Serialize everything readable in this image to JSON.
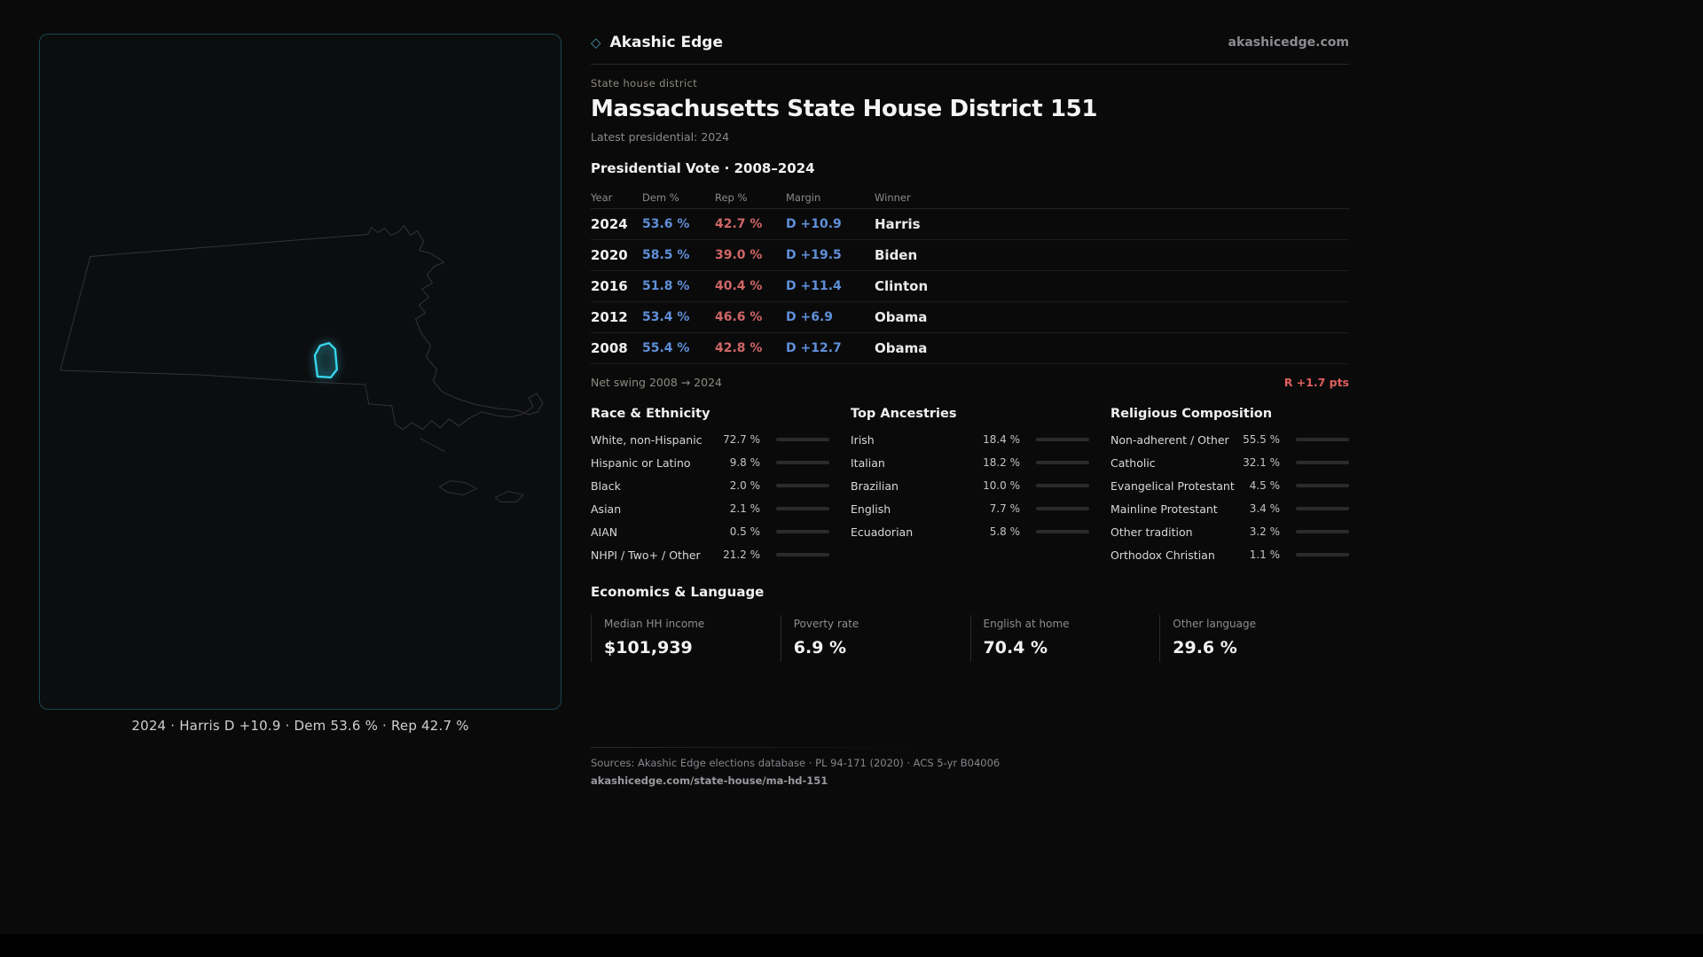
{
  "brand": {
    "name": "Akashic Edge",
    "icon": "diamond-outline",
    "site": "akashicedge.com"
  },
  "map": {
    "caption": "2024 · Harris D +10.9 · Dem 53.6 % · Rep 42.7 %",
    "highlight_color": "#38d6eb",
    "outline_name": "massachusetts-outline"
  },
  "header": {
    "kicker": "State house district",
    "title": "Massachusetts State House District 151",
    "subtitle": "Latest presidential: 2024"
  },
  "vote_table": {
    "title": "Presidential Vote · 2008–2024",
    "columns": [
      "Year",
      "Dem %",
      "Rep %",
      "Margin",
      "Winner"
    ],
    "dem_color": "#5f8fd8",
    "rep_color": "#d06666",
    "rows": [
      {
        "year": "2024",
        "dem": "53.6 %",
        "rep": "42.7 %",
        "margin": "D +10.9",
        "winner": "Harris"
      },
      {
        "year": "2020",
        "dem": "58.5 %",
        "rep": "39.0 %",
        "margin": "D +19.5",
        "winner": "Biden"
      },
      {
        "year": "2016",
        "dem": "51.8 %",
        "rep": "40.4 %",
        "margin": "D +11.4",
        "winner": "Clinton"
      },
      {
        "year": "2012",
        "dem": "53.4 %",
        "rep": "46.6 %",
        "margin": "D +6.9",
        "winner": "Obama"
      },
      {
        "year": "2008",
        "dem": "55.4 %",
        "rep": "42.8 %",
        "margin": "D +12.7",
        "winner": "Obama"
      }
    ],
    "net_swing_label": "Net swing 2008 → 2024",
    "net_swing_value": "R +1.7 pts",
    "net_swing_color": "#e05f5f"
  },
  "demographics": [
    {
      "title": "Race & Ethnicity",
      "rows": [
        {
          "label": "White, non-Hispanic",
          "value": "72.7 %",
          "pct": 72.7
        },
        {
          "label": "Hispanic or Latino",
          "value": "9.8 %",
          "pct": 9.8
        },
        {
          "label": "Black",
          "value": "2.0 %",
          "pct": 2.0
        },
        {
          "label": "Asian",
          "value": "2.1 %",
          "pct": 2.1
        },
        {
          "label": "AIAN",
          "value": "0.5 %",
          "pct": 0.5
        },
        {
          "label": "NHPI / Two+ / Other",
          "value": "21.2 %",
          "pct": 21.2
        }
      ]
    },
    {
      "title": "Top Ancestries",
      "rows": [
        {
          "label": "Irish",
          "value": "18.4 %",
          "pct": 18.4
        },
        {
          "label": "Italian",
          "value": "18.2 %",
          "pct": 18.2
        },
        {
          "label": "Brazilian",
          "value": "10.0 %",
          "pct": 10.0
        },
        {
          "label": "English",
          "value": "7.7 %",
          "pct": 7.7
        },
        {
          "label": "Ecuadorian",
          "value": "5.8 %",
          "pct": 5.8
        }
      ]
    },
    {
      "title": "Religious Composition",
      "rows": [
        {
          "label": "Non-adherent / Other",
          "value": "55.5 %",
          "pct": 55.5
        },
        {
          "label": "Catholic",
          "value": "32.1 %",
          "pct": 32.1
        },
        {
          "label": "Evangelical Protestant",
          "value": "4.5 %",
          "pct": 4.5
        },
        {
          "label": "Mainline Protestant",
          "value": "3.4 %",
          "pct": 3.4
        },
        {
          "label": "Other tradition",
          "value": "3.2 %",
          "pct": 3.2
        },
        {
          "label": "Orthodox Christian",
          "value": "1.1 %",
          "pct": 1.1
        }
      ]
    }
  ],
  "economics": {
    "title": "Economics & Language",
    "stats": [
      {
        "label": "Median HH income",
        "value": "$101,939"
      },
      {
        "label": "Poverty rate",
        "value": "6.9 %"
      },
      {
        "label": "English at home",
        "value": "70.4 %"
      },
      {
        "label": "Other language",
        "value": "29.6 %"
      }
    ]
  },
  "footer": {
    "sources": "Sources: Akashic Edge elections database · PL 94-171 (2020) · ACS 5-yr B04006",
    "permalink": "akashicedge.com/state-house/ma-hd-151"
  }
}
